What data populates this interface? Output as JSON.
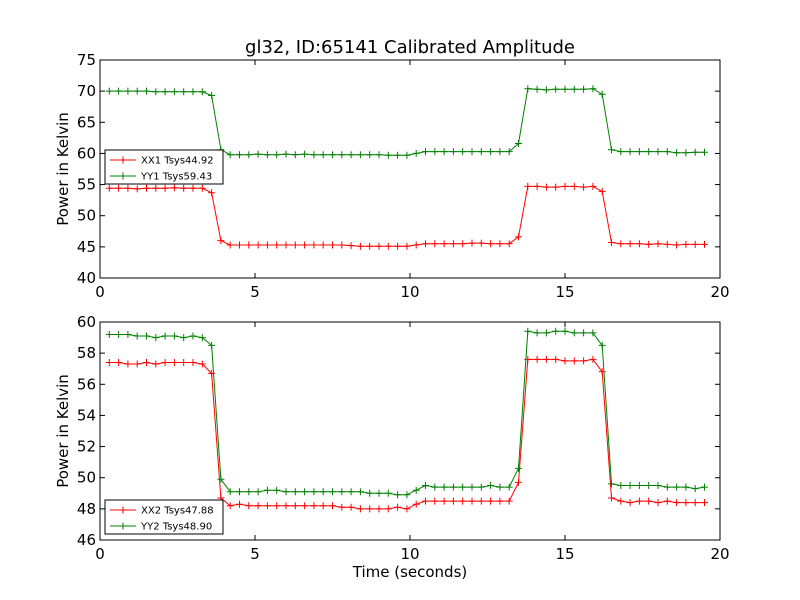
{
  "title": "gl32, ID:65141 Calibrated Amplitude",
  "chart_data": [
    {
      "type": "line",
      "xlabel": "",
      "ylabel": "Power in Kelvin",
      "xlim": [
        0,
        20
      ],
      "ylim": [
        40,
        75
      ],
      "xticks": [
        0,
        5,
        10,
        15,
        20
      ],
      "yticks": [
        40,
        45,
        50,
        55,
        60,
        65,
        70,
        75
      ],
      "grid": false,
      "legend_position": "center-left",
      "x": [
        0.3,
        0.6,
        0.9,
        1.2,
        1.5,
        1.8,
        2.1,
        2.4,
        2.7,
        3.0,
        3.3,
        3.6,
        3.9,
        4.2,
        4.5,
        4.8,
        5.1,
        5.4,
        5.7,
        6.0,
        6.3,
        6.6,
        6.9,
        7.2,
        7.5,
        7.8,
        8.1,
        8.4,
        8.7,
        9.0,
        9.3,
        9.6,
        9.9,
        10.2,
        10.5,
        10.8,
        11.1,
        11.4,
        11.7,
        12.0,
        12.3,
        12.6,
        12.9,
        13.2,
        13.5,
        13.8,
        14.1,
        14.4,
        14.7,
        15.0,
        15.3,
        15.6,
        15.9,
        16.2,
        16.5,
        16.8,
        17.1,
        17.4,
        17.7,
        18.0,
        18.3,
        18.6,
        18.9,
        19.2,
        19.5
      ],
      "series": [
        {
          "name": "XX1 Tsys44.92",
          "color": "#ff0000",
          "values": [
            54.4,
            54.4,
            54.4,
            54.3,
            54.4,
            54.4,
            54.4,
            54.5,
            54.4,
            54.4,
            54.4,
            53.7,
            46.0,
            45.3,
            45.3,
            45.3,
            45.3,
            45.3,
            45.3,
            45.3,
            45.3,
            45.3,
            45.3,
            45.3,
            45.3,
            45.3,
            45.2,
            45.1,
            45.1,
            45.1,
            45.1,
            45.1,
            45.1,
            45.3,
            45.5,
            45.5,
            45.5,
            45.5,
            45.5,
            45.6,
            45.6,
            45.5,
            45.5,
            45.5,
            46.6,
            54.7,
            54.7,
            54.6,
            54.6,
            54.7,
            54.7,
            54.6,
            54.7,
            53.9,
            45.7,
            45.5,
            45.5,
            45.5,
            45.4,
            45.5,
            45.4,
            45.3,
            45.4,
            45.4,
            45.4
          ]
        },
        {
          "name": "YY1 Tsys59.43",
          "color": "#008000",
          "values": [
            70.0,
            70.0,
            70.0,
            70.0,
            70.0,
            69.9,
            69.9,
            69.9,
            69.9,
            69.9,
            69.9,
            69.3,
            60.6,
            59.8,
            59.8,
            59.8,
            59.9,
            59.8,
            59.8,
            59.9,
            59.8,
            59.9,
            59.8,
            59.8,
            59.8,
            59.8,
            59.8,
            59.8,
            59.8,
            59.8,
            59.7,
            59.7,
            59.7,
            60.0,
            60.3,
            60.3,
            60.3,
            60.3,
            60.3,
            60.3,
            60.3,
            60.3,
            60.3,
            60.3,
            61.6,
            70.4,
            70.3,
            70.2,
            70.3,
            70.3,
            70.3,
            70.3,
            70.4,
            69.5,
            60.6,
            60.3,
            60.3,
            60.3,
            60.3,
            60.3,
            60.3,
            60.1,
            60.1,
            60.2,
            60.2
          ]
        }
      ]
    },
    {
      "type": "line",
      "xlabel": "Time (seconds)",
      "ylabel": "Power in Kelvin",
      "xlim": [
        0,
        20
      ],
      "ylim": [
        46,
        60
      ],
      "xticks": [
        0,
        5,
        10,
        15,
        20
      ],
      "yticks": [
        46,
        48,
        50,
        52,
        54,
        56,
        58,
        60
      ],
      "grid": false,
      "legend_position": "lower-left",
      "x": [
        0.3,
        0.6,
        0.9,
        1.2,
        1.5,
        1.8,
        2.1,
        2.4,
        2.7,
        3.0,
        3.3,
        3.6,
        3.9,
        4.2,
        4.5,
        4.8,
        5.1,
        5.4,
        5.7,
        6.0,
        6.3,
        6.6,
        6.9,
        7.2,
        7.5,
        7.8,
        8.1,
        8.4,
        8.7,
        9.0,
        9.3,
        9.6,
        9.9,
        10.2,
        10.5,
        10.8,
        11.1,
        11.4,
        11.7,
        12.0,
        12.3,
        12.6,
        12.9,
        13.2,
        13.5,
        13.8,
        14.1,
        14.4,
        14.7,
        15.0,
        15.3,
        15.6,
        15.9,
        16.2,
        16.5,
        16.8,
        17.1,
        17.4,
        17.7,
        18.0,
        18.3,
        18.6,
        18.9,
        19.2,
        19.5
      ],
      "series": [
        {
          "name": "XX2 Tsys47.88",
          "color": "#ff0000",
          "values": [
            57.4,
            57.4,
            57.3,
            57.3,
            57.4,
            57.3,
            57.4,
            57.4,
            57.4,
            57.4,
            57.3,
            56.7,
            48.7,
            48.2,
            48.3,
            48.2,
            48.2,
            48.2,
            48.2,
            48.2,
            48.2,
            48.2,
            48.2,
            48.2,
            48.2,
            48.1,
            48.1,
            48.0,
            48.0,
            48.0,
            48.0,
            48.1,
            48.0,
            48.3,
            48.5,
            48.5,
            48.5,
            48.5,
            48.5,
            48.5,
            48.5,
            48.5,
            48.5,
            48.5,
            49.7,
            57.6,
            57.6,
            57.6,
            57.6,
            57.5,
            57.5,
            57.5,
            57.6,
            56.8,
            48.7,
            48.5,
            48.4,
            48.5,
            48.5,
            48.4,
            48.5,
            48.4,
            48.4,
            48.4,
            48.4
          ]
        },
        {
          "name": "YY2 Tsys48.90",
          "color": "#008000",
          "values": [
            59.2,
            59.2,
            59.2,
            59.1,
            59.1,
            59.0,
            59.1,
            59.1,
            59.0,
            59.1,
            59.0,
            58.5,
            49.9,
            49.1,
            49.1,
            49.1,
            49.1,
            49.2,
            49.2,
            49.1,
            49.1,
            49.1,
            49.1,
            49.1,
            49.1,
            49.1,
            49.1,
            49.1,
            49.0,
            49.0,
            49.0,
            48.9,
            48.9,
            49.2,
            49.5,
            49.4,
            49.4,
            49.4,
            49.4,
            49.4,
            49.4,
            49.5,
            49.4,
            49.4,
            50.6,
            59.4,
            59.3,
            59.3,
            59.4,
            59.4,
            59.3,
            59.3,
            59.3,
            58.5,
            49.6,
            49.5,
            49.5,
            49.5,
            49.5,
            49.5,
            49.4,
            49.4,
            49.4,
            49.3,
            49.4
          ]
        }
      ]
    }
  ]
}
